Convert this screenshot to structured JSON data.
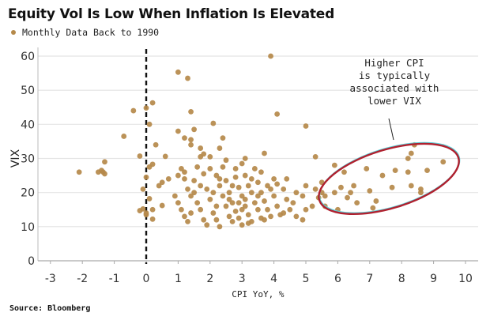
{
  "title": "Equity Vol Is Low When Inflation Is Elevated",
  "legend_label": "Monthly Data Back to 1990",
  "source": "Source: Bloomberg",
  "colors": {
    "point": "#b5894a",
    "ellipse": "#b0202e",
    "ellipse_glow": "#5fd0d8",
    "grid": "#e4e4e4",
    "zero_line": "#111111"
  },
  "chart_data": {
    "type": "scatter",
    "title": "Equity Vol Is Low When Inflation Is Elevated",
    "xlabel": "CPI YoY, %",
    "ylabel": "VIX",
    "xlim": [
      -3.3,
      10.2
    ],
    "ylim": [
      0,
      62
    ],
    "xticks": [
      -3,
      -2,
      -1,
      0,
      1,
      2,
      3,
      4,
      5,
      6,
      7,
      8,
      9,
      10
    ],
    "yticks": [
      0,
      10,
      20,
      30,
      40,
      50,
      60
    ],
    "grid": "horizontal",
    "legend": {
      "entries": [
        "Monthly Data Back to 1990"
      ],
      "placement": "top-left"
    },
    "vertical_reference_line": {
      "x": 0,
      "style": "dashed"
    },
    "annotation": {
      "text_lines": [
        "Higher CPI",
        "is typically",
        "associated with",
        "lower VIX"
      ],
      "highlight": "ellipse around CPI 5.5-9.8, VIX 15-33"
    },
    "series": [
      {
        "name": "Monthly Data Back to 1990",
        "points": [
          [
            -2.1,
            26
          ],
          [
            -1.5,
            26
          ],
          [
            -1.4,
            26.5
          ],
          [
            -1.35,
            26
          ],
          [
            -1.3,
            25.5
          ],
          [
            -1.3,
            29
          ],
          [
            -0.7,
            36.5
          ],
          [
            -0.4,
            44
          ],
          [
            -0.2,
            30.7
          ],
          [
            -0.1,
            21
          ],
          [
            -0.2,
            14.7
          ],
          [
            -0.1,
            15.2
          ],
          [
            0,
            13.5
          ],
          [
            0,
            14
          ],
          [
            0,
            24.5
          ],
          [
            0,
            44.8
          ],
          [
            0.1,
            40
          ],
          [
            0.2,
            46.3
          ],
          [
            0.1,
            27.5
          ],
          [
            0.2,
            28.3
          ],
          [
            0.1,
            18.2
          ],
          [
            0.2,
            15
          ],
          [
            0.2,
            12.2
          ],
          [
            0.3,
            34
          ],
          [
            0.5,
            16.2
          ],
          [
            0.6,
            30.6
          ],
          [
            1.0,
            55.3
          ],
          [
            1.3,
            53.5
          ],
          [
            1.4,
            43.7
          ],
          [
            1.4,
            35.5
          ],
          [
            1.4,
            34
          ],
          [
            1.7,
            33
          ],
          [
            1.7,
            30.5
          ],
          [
            1.2,
            36
          ],
          [
            1.0,
            38
          ],
          [
            1.5,
            38.5
          ],
          [
            2.1,
            40.3
          ],
          [
            3.9,
            60
          ],
          [
            4.1,
            43
          ],
          [
            5.0,
            39.5
          ],
          [
            3.7,
            31.5
          ],
          [
            2.0,
            30.5
          ],
          [
            2.3,
            33
          ],
          [
            2.4,
            36
          ],
          [
            2.5,
            29.5
          ],
          [
            2.8,
            27
          ],
          [
            3.0,
            28.5
          ],
          [
            3.1,
            30
          ],
          [
            1.8,
            31.3
          ],
          [
            0.4,
            22
          ],
          [
            0.5,
            23
          ],
          [
            0.7,
            24
          ],
          [
            0.9,
            19
          ],
          [
            1.0,
            17
          ],
          [
            1.1,
            15
          ],
          [
            1.2,
            13
          ],
          [
            1.3,
            11.5
          ],
          [
            1.0,
            25
          ],
          [
            1.1,
            27
          ],
          [
            1.2,
            26
          ],
          [
            1.3,
            21
          ],
          [
            1.4,
            19
          ],
          [
            1.5,
            23.5
          ],
          [
            1.6,
            17
          ],
          [
            1.7,
            15
          ],
          [
            1.8,
            12
          ],
          [
            1.9,
            10.5
          ],
          [
            1.6,
            27.5
          ],
          [
            1.8,
            25.5
          ],
          [
            1.9,
            21
          ],
          [
            2.0,
            18
          ],
          [
            2.1,
            14
          ],
          [
            2.2,
            12
          ],
          [
            2.3,
            10
          ],
          [
            2.0,
            27
          ],
          [
            2.2,
            25
          ],
          [
            2.3,
            22
          ],
          [
            2.4,
            19
          ],
          [
            2.5,
            16
          ],
          [
            2.6,
            13
          ],
          [
            2.7,
            11.5
          ],
          [
            2.4,
            27.5
          ],
          [
            2.5,
            23.5
          ],
          [
            2.6,
            20
          ],
          [
            2.7,
            17
          ],
          [
            2.8,
            14.5
          ],
          [
            2.9,
            12.5
          ],
          [
            3.0,
            10.5
          ],
          [
            2.8,
            24.5
          ],
          [
            2.9,
            21.5
          ],
          [
            3.0,
            19
          ],
          [
            3.1,
            16
          ],
          [
            3.2,
            13.5
          ],
          [
            3.3,
            11.5
          ],
          [
            3.1,
            25
          ],
          [
            3.2,
            22
          ],
          [
            3.3,
            20
          ],
          [
            3.4,
            17
          ],
          [
            3.5,
            15
          ],
          [
            3.6,
            12.5
          ],
          [
            3.4,
            27
          ],
          [
            3.5,
            23
          ],
          [
            3.6,
            20
          ],
          [
            3.7,
            17.5
          ],
          [
            3.8,
            15
          ],
          [
            3.9,
            13
          ],
          [
            3.6,
            26
          ],
          [
            3.8,
            22
          ],
          [
            4.0,
            19
          ],
          [
            4.1,
            16
          ],
          [
            4.2,
            13.5
          ],
          [
            4.0,
            24
          ],
          [
            4.3,
            21
          ],
          [
            4.4,
            18
          ],
          [
            4.5,
            15
          ],
          [
            4.6,
            17
          ],
          [
            4.7,
            20
          ],
          [
            4.9,
            19
          ],
          [
            4.9,
            12
          ],
          [
            5.0,
            22
          ],
          [
            5.2,
            16
          ],
          [
            5.3,
            21
          ],
          [
            5.4,
            18.5
          ],
          [
            5.5,
            20
          ],
          [
            5.5,
            23
          ],
          [
            5.6,
            19
          ],
          [
            5.6,
            16
          ],
          [
            1.2,
            24
          ],
          [
            1.4,
            14
          ],
          [
            1.5,
            20
          ],
          [
            1.7,
            22
          ],
          [
            2.1,
            20
          ],
          [
            2.2,
            16
          ],
          [
            2.3,
            24
          ],
          [
            2.6,
            18
          ],
          [
            2.7,
            22
          ],
          [
            2.9,
            17
          ],
          [
            3.0,
            15
          ],
          [
            3.1,
            18
          ],
          [
            3.2,
            11
          ],
          [
            3.3,
            24
          ],
          [
            3.5,
            19
          ],
          [
            3.7,
            12
          ],
          [
            3.9,
            21
          ],
          [
            4.1,
            22.5
          ],
          [
            4.3,
            14
          ],
          [
            4.4,
            24
          ],
          [
            4.7,
            13
          ],
          [
            5.0,
            15
          ],
          [
            5.3,
            30.5
          ],
          [
            5.9,
            28
          ],
          [
            6.1,
            21.5
          ],
          [
            6.2,
            26
          ],
          [
            6.5,
            22
          ],
          [
            6.4,
            20
          ],
          [
            6.6,
            17
          ],
          [
            6.9,
            27
          ],
          [
            7.0,
            20.5
          ],
          [
            7.1,
            15.5
          ],
          [
            7.4,
            25
          ],
          [
            7.7,
            21.5
          ],
          [
            7.8,
            26.5
          ],
          [
            8.2,
            30
          ],
          [
            8.3,
            31.5
          ],
          [
            8.4,
            34
          ],
          [
            8.3,
            22
          ],
          [
            8.2,
            26
          ],
          [
            8.6,
            21
          ],
          [
            8.6,
            20
          ],
          [
            8.8,
            26.5
          ],
          [
            9.3,
            29
          ],
          [
            6.0,
            15
          ],
          [
            6.3,
            18.5
          ],
          [
            5.9,
            20
          ],
          [
            7.2,
            17.5
          ]
        ]
      }
    ]
  }
}
